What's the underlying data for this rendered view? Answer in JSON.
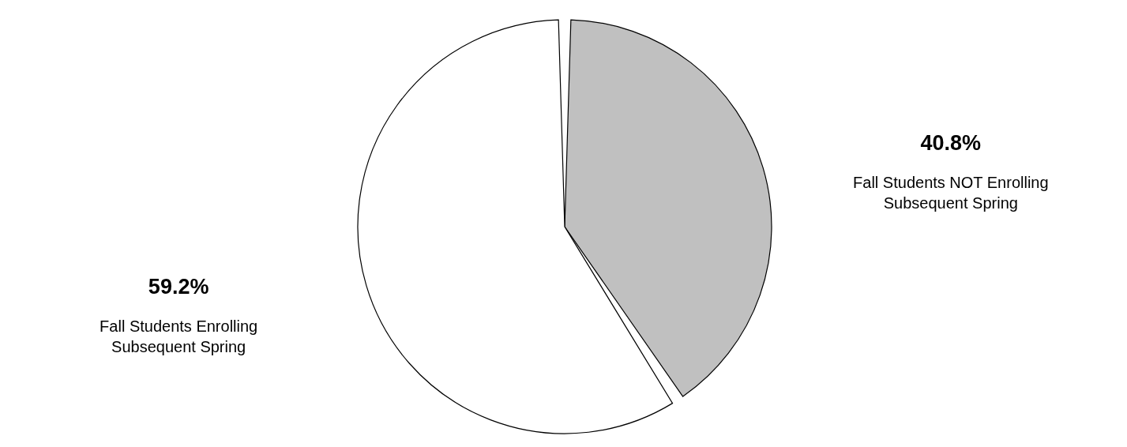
{
  "chart_data": {
    "type": "pie",
    "categories": [
      "Fall Students NOT Enrolling\nSubsequent Spring",
      "Fall Students Enrolling\nSubsequent Spring"
    ],
    "values": [
      40.8,
      59.2
    ],
    "colors": [
      "#c0c0c0",
      "#ffffff"
    ],
    "value_labels": [
      "40.8%",
      "59.2%"
    ]
  }
}
